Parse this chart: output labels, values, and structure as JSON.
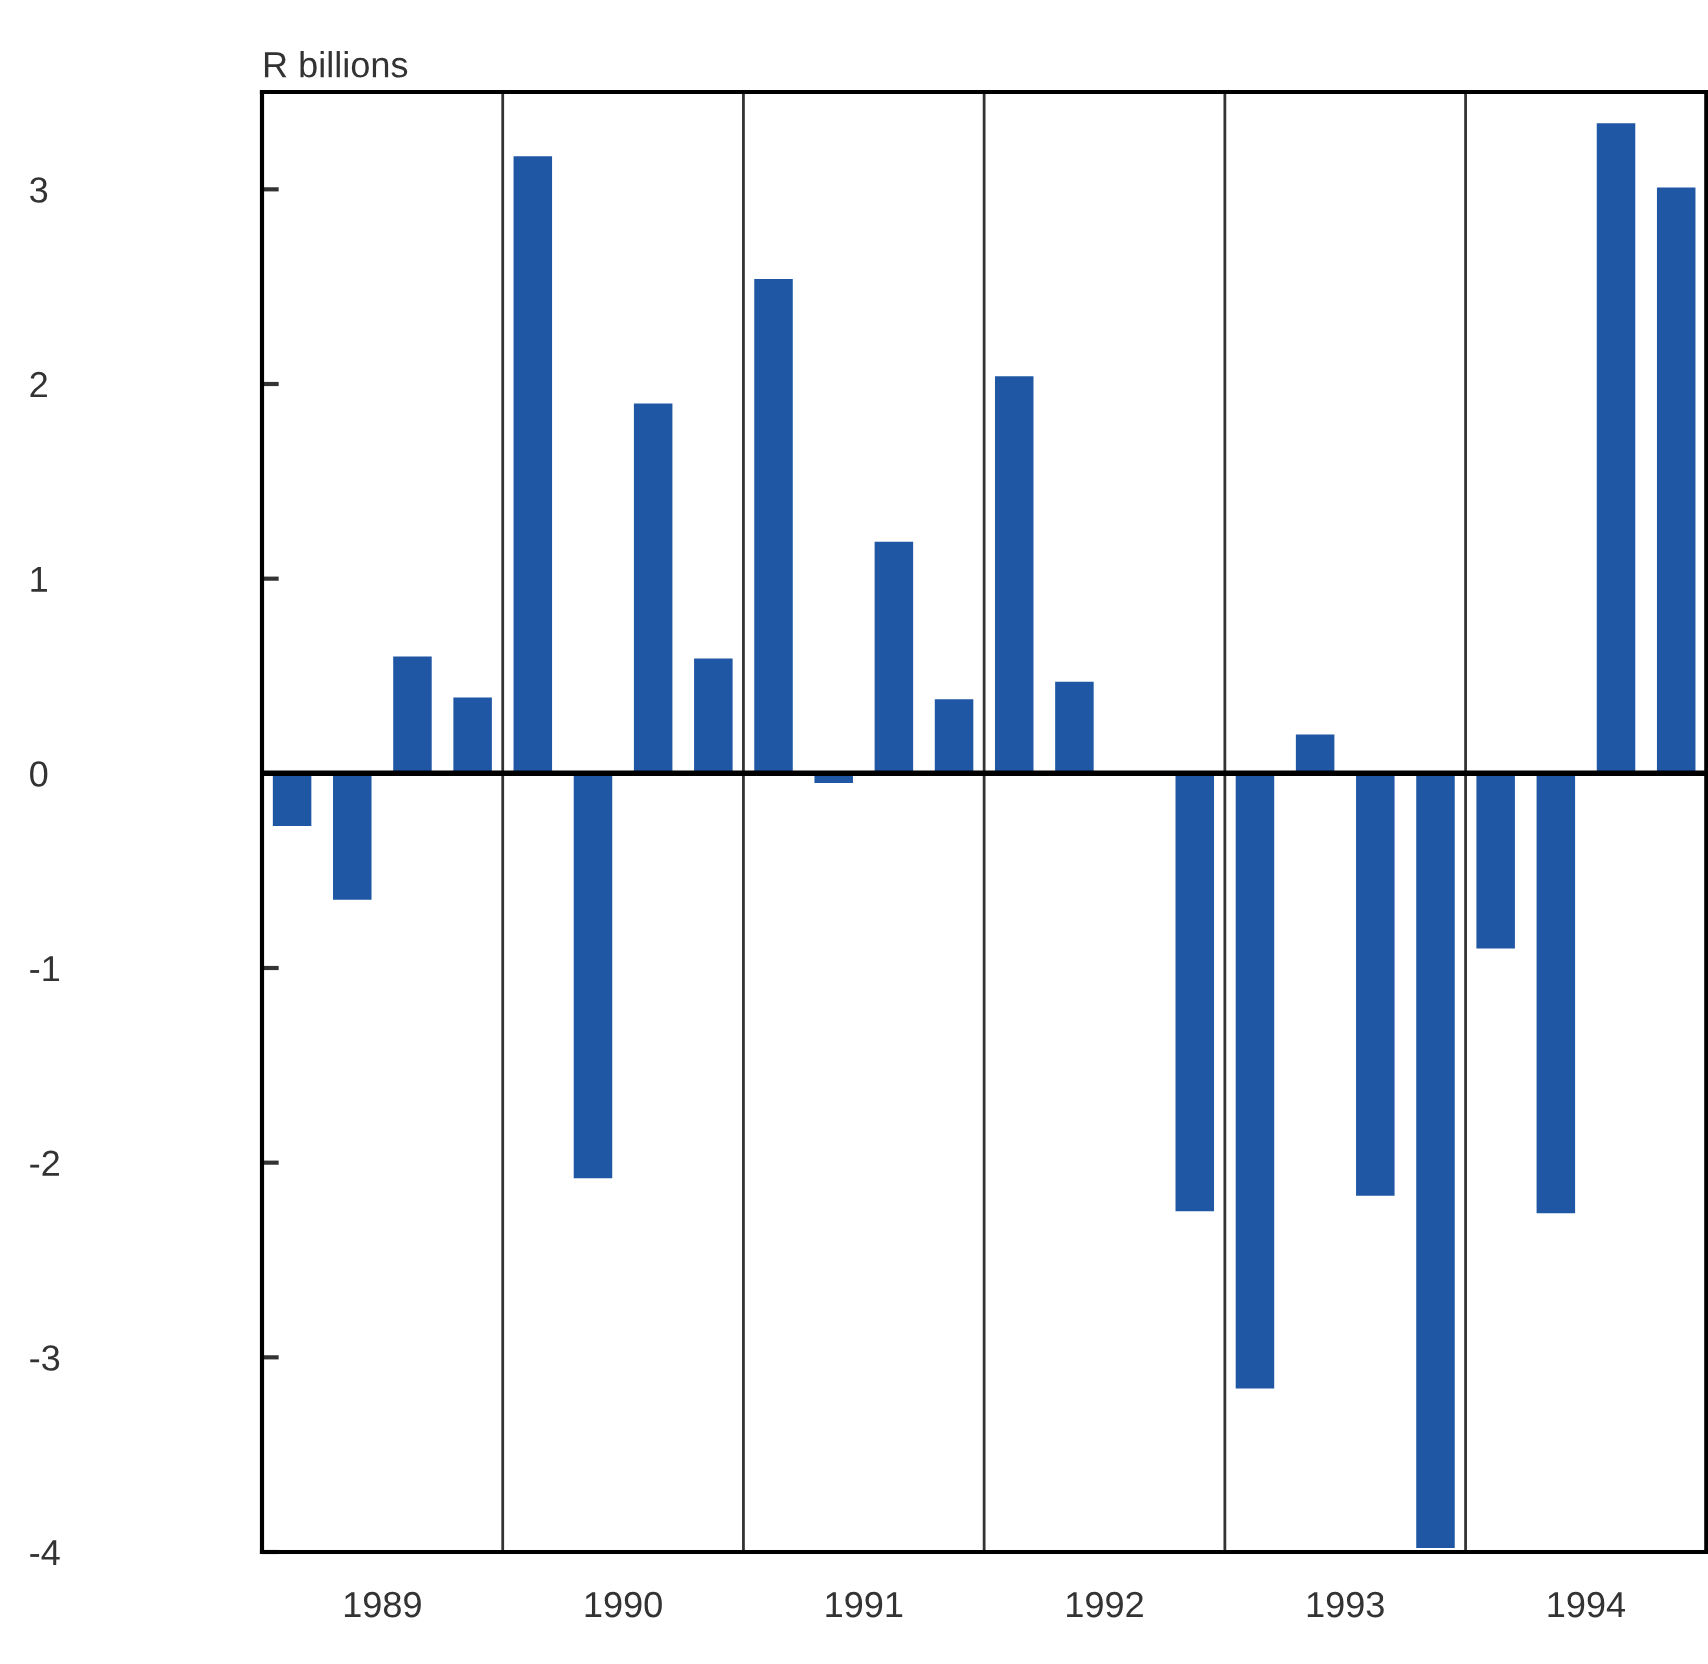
{
  "chart_data": {
    "type": "bar",
    "ylabel": "R billions",
    "x": [
      1989.125,
      1989.375,
      1989.625,
      1989.875,
      1990.125,
      1990.375,
      1990.625,
      1990.875,
      1991.125,
      1991.375,
      1991.625,
      1991.875,
      1992.125,
      1992.375,
      1992.625,
      1992.875,
      1993.125,
      1993.375,
      1993.625,
      1993.875,
      1994.125,
      1994.375,
      1994.625,
      1994.875
    ],
    "series": [
      {
        "color": "#1f57a4",
        "values": [
          -0.27,
          -0.65,
          0.6,
          0.39,
          3.17,
          -2.08,
          1.9,
          0.59,
          2.54,
          -0.05,
          1.19,
          0.38,
          2.04,
          0.47,
          0,
          -2.25,
          -3.16,
          0.2,
          -2.17,
          -3.98,
          -0.9,
          -2.26,
          3.34,
          3.01
        ]
      }
    ],
    "xlim": [
      1989,
      1995
    ],
    "ylim": [
      -4,
      3.5
    ],
    "xticks": [
      {
        "value": 1989.5,
        "label": "1989"
      },
      {
        "value": 1990.5,
        "label": "1990"
      },
      {
        "value": 1991.5,
        "label": "1991"
      },
      {
        "value": 1992.5,
        "label": "1992"
      },
      {
        "value": 1993.5,
        "label": "1993"
      },
      {
        "value": 1994.5,
        "label": "1994"
      }
    ],
    "yticks": [
      -4,
      -3,
      -2,
      -1,
      0,
      1,
      2,
      3
    ],
    "ref_lines": [
      {
        "axis": "y",
        "value": 0,
        "color": "#000000",
        "line_style": "solid"
      },
      {
        "axis": "x",
        "value": 1990,
        "color": "#333333"
      },
      {
        "axis": "x",
        "value": 1991,
        "color": "#333333"
      },
      {
        "axis": "x",
        "value": 1992,
        "color": "#333333"
      },
      {
        "axis": "x",
        "value": 1993,
        "color": "#333333"
      },
      {
        "axis": "x",
        "value": 1994,
        "color": "#333333"
      }
    ]
  }
}
